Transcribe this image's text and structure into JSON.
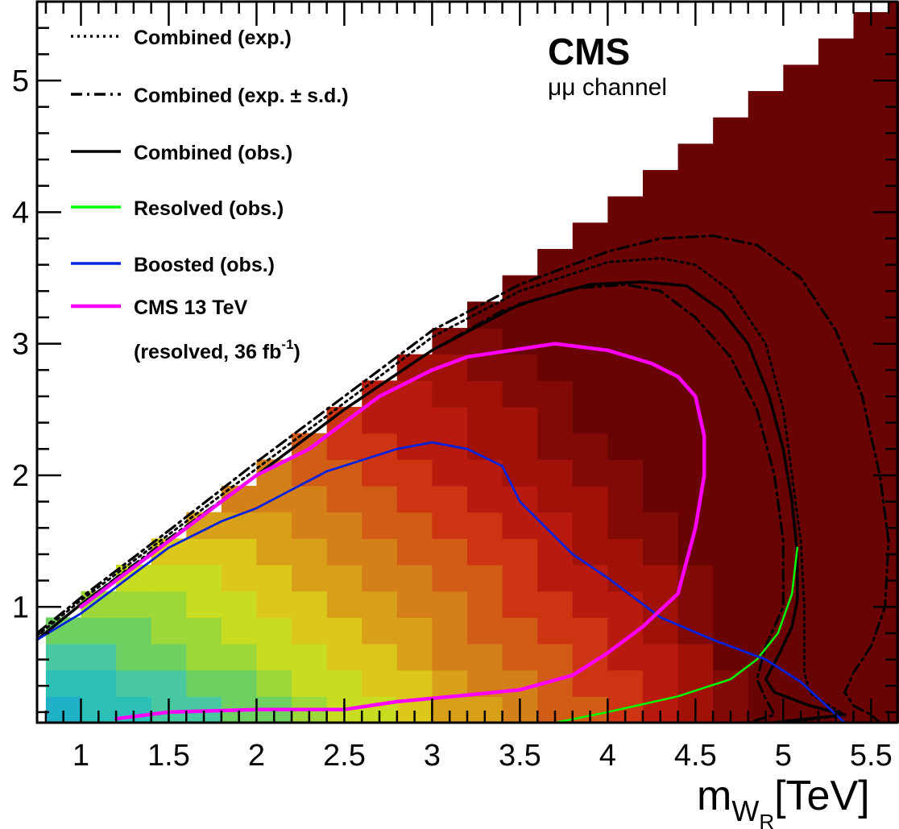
{
  "chart_data": {
    "type": "heatmap",
    "experiment_label": "CMS",
    "channel_label": "μμ channel",
    "xlabel": {
      "main": "m",
      "sub": "W",
      "subsub": "R",
      "unit": "[TeV]"
    },
    "ylabel": "",
    "xlim": [
      0.75,
      5.65
    ],
    "ylim": [
      0.12,
      5.6
    ],
    "x_ticks": [
      1,
      1.5,
      2,
      2.5,
      3,
      3.5,
      4,
      4.5,
      5,
      5.5
    ],
    "x_tick_labels": [
      "1",
      "1.5",
      "2",
      "2.5",
      "3",
      "3.5",
      "4",
      "4.5",
      "5",
      "5.5"
    ],
    "y_ticks": [
      1,
      2,
      3,
      4,
      5
    ],
    "y_tick_labels": [
      "1",
      "2",
      "3",
      "4",
      "5"
    ],
    "colors": {
      "combined": "#000000",
      "resolved": "#00ff00",
      "boosted": "#0022dd",
      "cms13": "#ff00ff"
    },
    "legend": [
      {
        "key": "exp",
        "label": "Combined (exp.)",
        "style": "dotted",
        "color": "#000000"
      },
      {
        "key": "expsd",
        "label": "Combined (exp. ± s.d.)",
        "style": "dashdot",
        "color": "#000000"
      },
      {
        "key": "obs",
        "label": "Combined (obs.)",
        "style": "solid",
        "color": "#000000"
      },
      {
        "key": "resolved",
        "label": "Resolved (obs.)",
        "style": "solid",
        "color": "#00ff00"
      },
      {
        "key": "boosted",
        "label": "Boosted (obs.)",
        "style": "solid",
        "color": "#0022dd"
      },
      {
        "key": "cms13",
        "label": "CMS 13 TeV",
        "label2": "(resolved, 36 fb",
        "label2_sup": "-1",
        "label2_end": ")",
        "style": "solid",
        "color": "#ff00ff"
      }
    ],
    "heatmap": {
      "x_bin_width": 0.2,
      "y_bin_width": 0.2,
      "x_start": 0.8,
      "y_start": 0.12,
      "palette": [
        "#0d4ea0",
        "#1460b8",
        "#1478c8",
        "#1a96cc",
        "#20b0c8",
        "#2cc0b8",
        "#48c8a0",
        "#6ed060",
        "#9cd83a",
        "#c8dc20",
        "#dcc81a",
        "#d8a018",
        "#d48018",
        "#d05c16",
        "#cc3412",
        "#b81a0e",
        "#a01208",
        "#820a06",
        "#6a0404"
      ]
    },
    "series": [
      {
        "key": "exp",
        "x": [
          0.75,
          1.0,
          1.5,
          2.0,
          2.5,
          3.0,
          3.5,
          4.0,
          4.3,
          4.5,
          4.7,
          4.9,
          5.0,
          5.05,
          5.1,
          5.12,
          5.12,
          5.15,
          5.2,
          5.3,
          5.35,
          5.2,
          5.0
        ],
        "y": [
          0.78,
          1.05,
          1.55,
          2.05,
          2.55,
          3.05,
          3.4,
          3.62,
          3.65,
          3.6,
          3.4,
          3.0,
          2.5,
          2.0,
          1.5,
          1.0,
          0.5,
          0.35,
          0.3,
          0.22,
          0.18,
          0.15,
          0.12
        ]
      },
      {
        "key": "expsd_plus",
        "x": [
          0.75,
          1.0,
          1.5,
          2.0,
          2.5,
          3.0,
          3.5,
          4.0,
          4.3,
          4.6,
          4.85,
          5.1,
          5.3,
          5.45,
          5.55,
          5.6,
          5.58,
          5.5,
          5.4,
          5.35,
          5.4,
          5.5,
          5.55
        ],
        "y": [
          0.8,
          1.07,
          1.58,
          2.1,
          2.6,
          3.1,
          3.45,
          3.7,
          3.8,
          3.82,
          3.75,
          3.5,
          3.1,
          2.6,
          2.0,
          1.5,
          1.0,
          0.7,
          0.5,
          0.35,
          0.25,
          0.18,
          0.12
        ]
      },
      {
        "key": "expsd_minus",
        "x": [
          0.75,
          1.0,
          1.5,
          2.0,
          2.5,
          3.0,
          3.4,
          3.8,
          4.1,
          4.3,
          4.5,
          4.7,
          4.85,
          4.95,
          5.0,
          5.0,
          4.9,
          4.85,
          4.9,
          4.95,
          4.8
        ],
        "y": [
          0.75,
          1.02,
          1.52,
          2.0,
          2.5,
          2.95,
          3.25,
          3.42,
          3.45,
          3.4,
          3.2,
          2.9,
          2.5,
          2.0,
          1.5,
          1.0,
          0.7,
          0.45,
          0.3,
          0.18,
          0.12
        ]
      },
      {
        "key": "obs",
        "x": [
          0.75,
          1.0,
          1.5,
          2.0,
          2.5,
          3.0,
          3.5,
          3.9,
          4.2,
          4.45,
          4.65,
          4.8,
          4.92,
          5.0,
          5.05,
          5.08,
          5.08,
          5.05,
          4.98,
          4.9,
          4.95,
          5.15,
          5.35,
          5.15,
          5.0,
          4.95
        ],
        "y": [
          0.75,
          1.02,
          1.5,
          2.0,
          2.5,
          2.95,
          3.3,
          3.45,
          3.47,
          3.44,
          3.25,
          3.0,
          2.6,
          2.2,
          1.8,
          1.4,
          1.05,
          0.85,
          0.65,
          0.45,
          0.35,
          0.25,
          0.18,
          0.15,
          0.13,
          0.12
        ]
      },
      {
        "key": "resolved",
        "x": [
          3.7,
          4.0,
          4.4,
          4.7,
          4.85,
          4.97,
          5.05,
          5.08
        ],
        "y": [
          0.12,
          0.2,
          0.32,
          0.45,
          0.6,
          0.8,
          1.1,
          1.45
        ]
      },
      {
        "key": "boosted",
        "x": [
          0.75,
          1.0,
          1.2,
          1.5,
          1.8,
          2.0,
          2.4,
          2.8,
          3.0,
          3.2,
          3.4,
          3.5,
          3.8,
          4.0,
          4.3,
          4.6,
          4.9,
          5.1,
          5.35
        ],
        "y": [
          0.75,
          0.95,
          1.15,
          1.45,
          1.65,
          1.75,
          2.03,
          2.2,
          2.25,
          2.2,
          2.07,
          1.8,
          1.4,
          1.22,
          0.92,
          0.75,
          0.6,
          0.43,
          0.12
        ]
      },
      {
        "key": "cms13",
        "x": [
          1.2,
          1.5,
          2.0,
          2.5,
          2.8,
          3.2,
          3.5,
          3.8,
          4.0,
          4.2,
          4.4,
          4.5,
          4.55,
          4.55,
          4.5,
          4.4,
          4.25,
          4.0,
          3.7,
          3.45,
          3.2,
          3.0,
          2.7,
          2.5,
          2.3,
          2.0,
          1.8,
          1.6,
          1.4,
          1.2,
          1.0
        ],
        "y": [
          0.15,
          0.2,
          0.22,
          0.22,
          0.28,
          0.33,
          0.37,
          0.48,
          0.65,
          0.85,
          1.1,
          1.6,
          2.0,
          2.3,
          2.6,
          2.75,
          2.85,
          2.95,
          3.0,
          2.95,
          2.9,
          2.8,
          2.6,
          2.4,
          2.2,
          2.0,
          1.8,
          1.6,
          1.4,
          1.2,
          1.0
        ]
      }
    ]
  }
}
